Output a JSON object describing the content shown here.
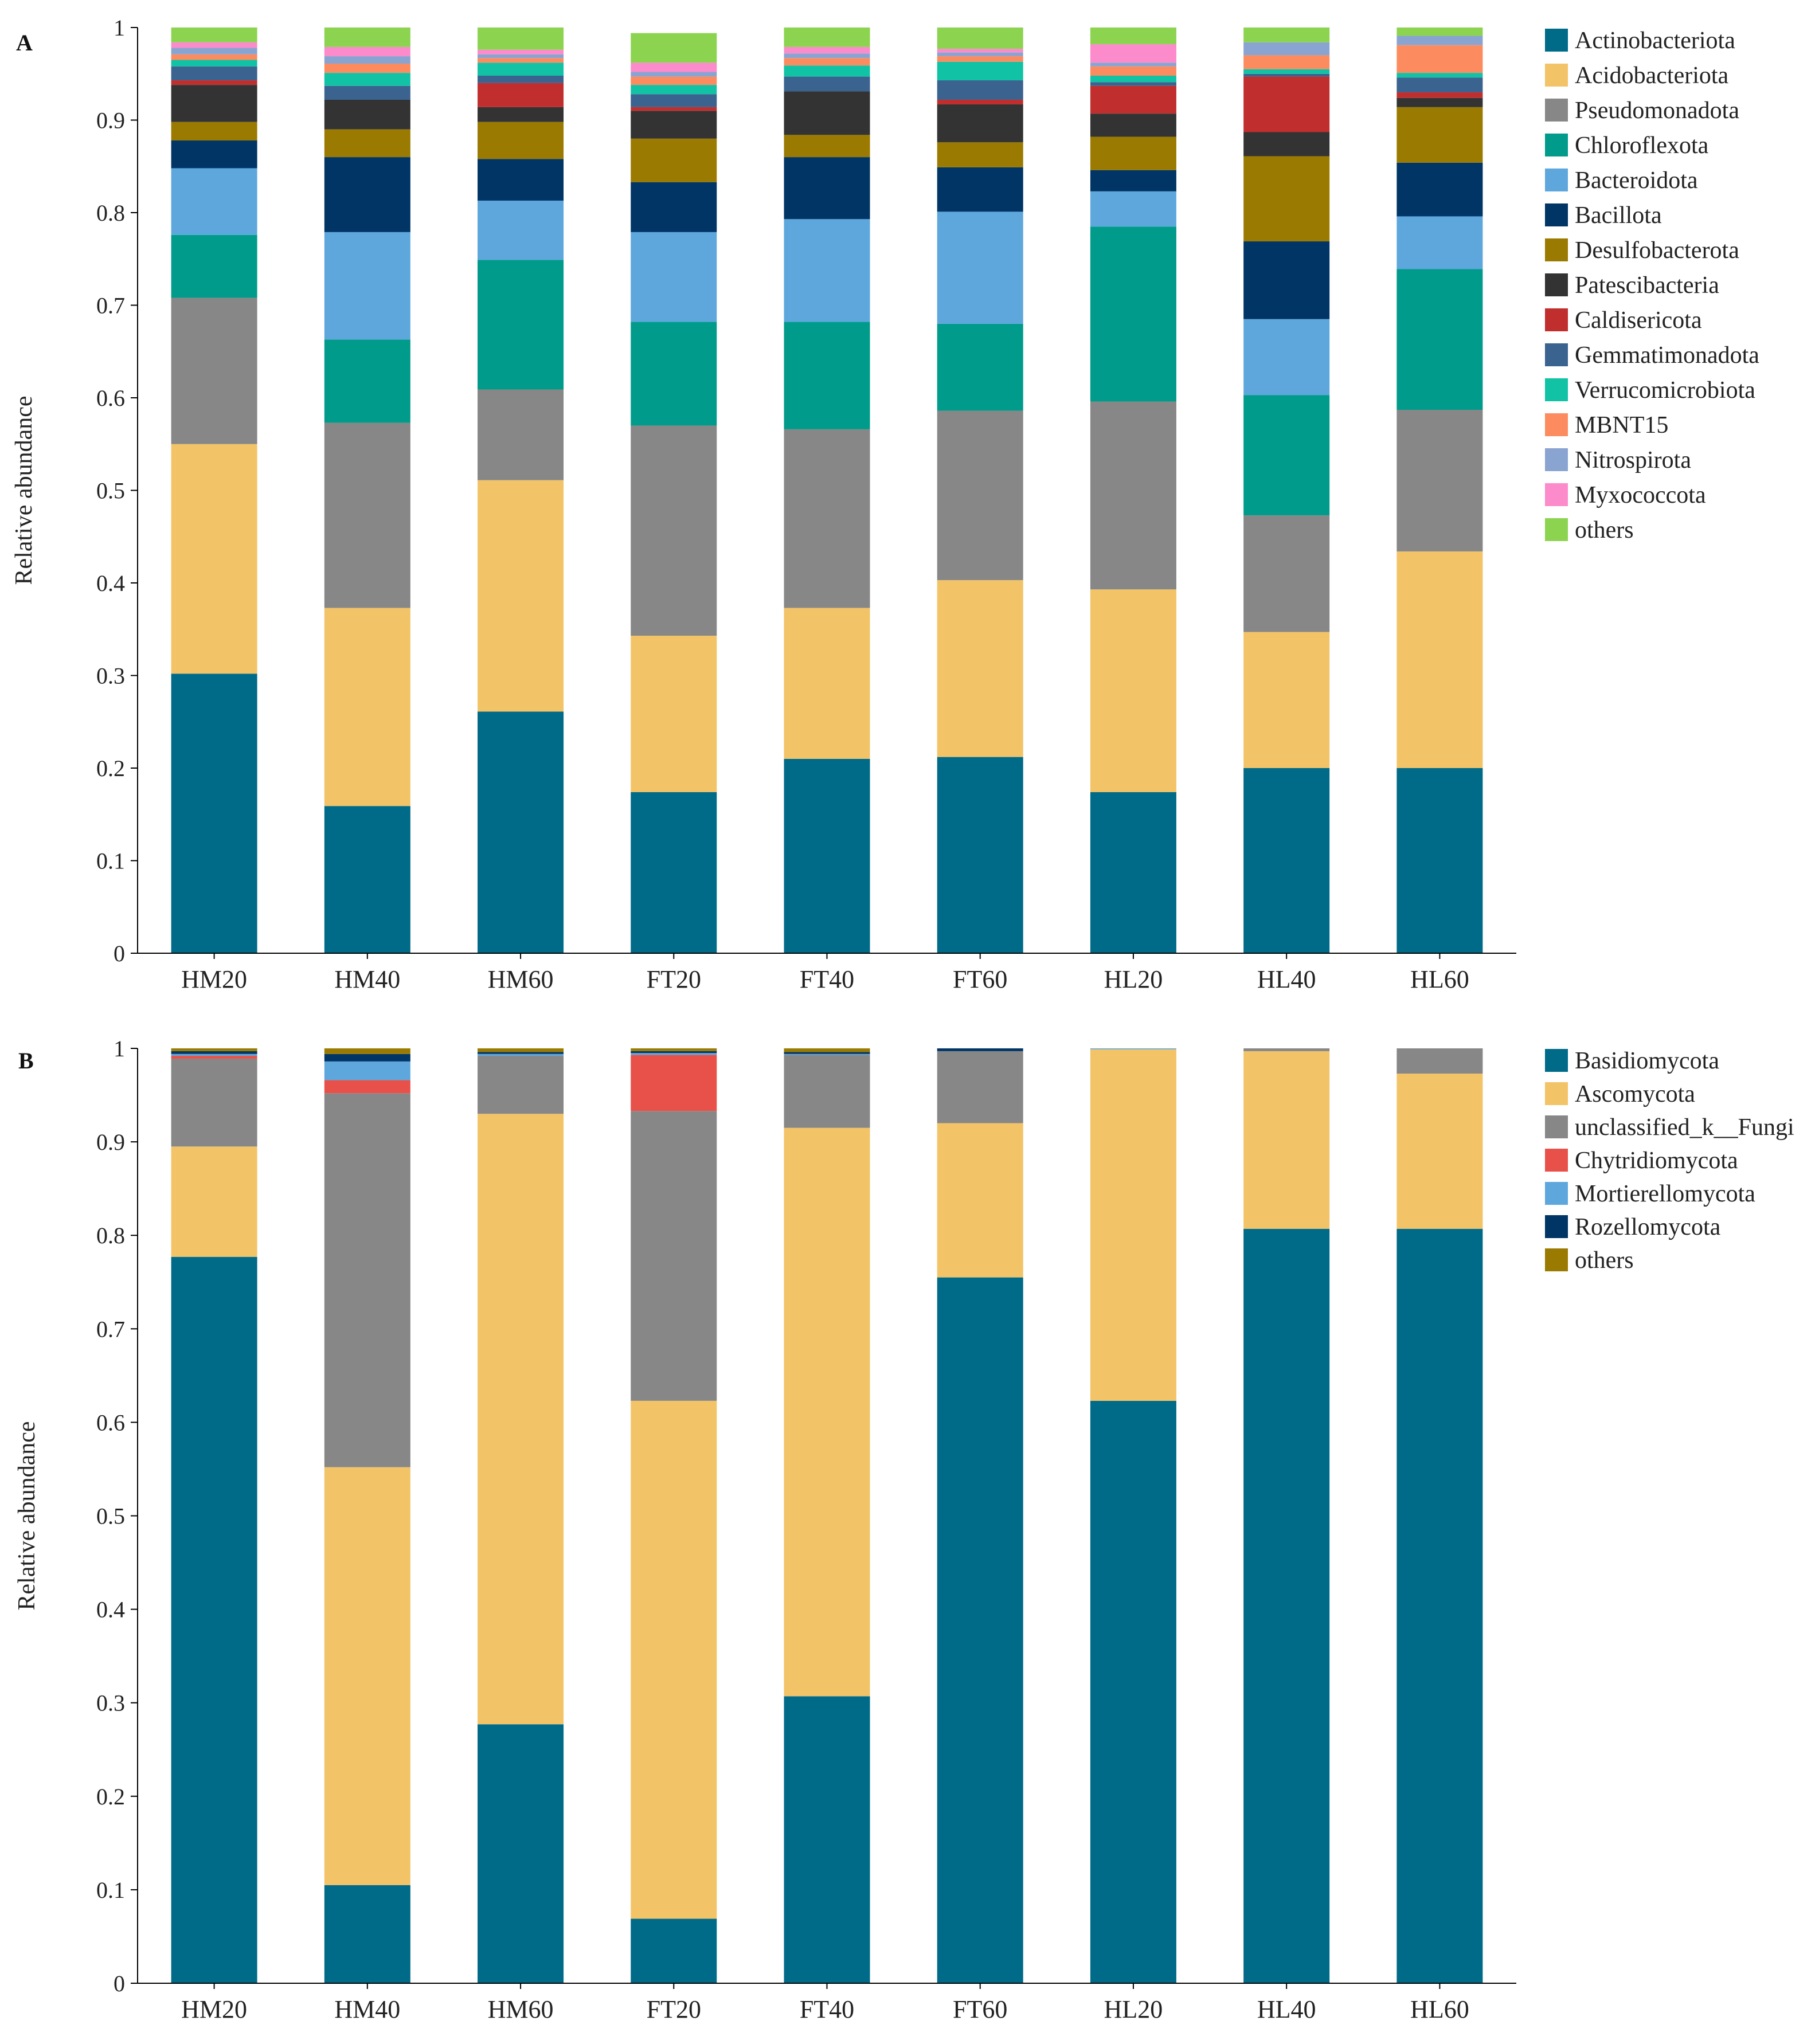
{
  "chart_data": [
    {
      "panel": "A",
      "type": "bar",
      "stacked": true,
      "ylabel": "Relative abundance",
      "ylim": [
        0,
        1
      ],
      "yticks": [
        "0",
        "0.1",
        "0.2",
        "0.3",
        "0.4",
        "0.5",
        "0.6",
        "0.7",
        "0.8",
        "0.9",
        "1"
      ],
      "categories": [
        "HM20",
        "HM40",
        "HM60",
        "FT20",
        "FT40",
        "FT60",
        "HL20",
        "HL40",
        "HL60"
      ],
      "series": [
        {
          "name": "Actinobacteriota",
          "color": "#006A89",
          "values": [
            0.302,
            0.159,
            0.261,
            0.174,
            0.21,
            0.212,
            0.174,
            0.2,
            0.2
          ]
        },
        {
          "name": "Acidobacteriota",
          "color": "#F3C367",
          "values": [
            0.248,
            0.214,
            0.25,
            0.169,
            0.163,
            0.191,
            0.219,
            0.147,
            0.234
          ]
        },
        {
          "name": "Pseudomonadota",
          "color": "#878787",
          "values": [
            0.158,
            0.2,
            0.098,
            0.227,
            0.193,
            0.183,
            0.203,
            0.126,
            0.153
          ]
        },
        {
          "name": "Chloroflexota",
          "color": "#009B8A",
          "values": [
            0.068,
            0.09,
            0.14,
            0.112,
            0.116,
            0.094,
            0.189,
            0.13,
            0.152
          ]
        },
        {
          "name": "Bacteroidota",
          "color": "#5EA7DD",
          "values": [
            0.072,
            0.116,
            0.064,
            0.097,
            0.111,
            0.121,
            0.038,
            0.082,
            0.057
          ]
        },
        {
          "name": "Bacillota",
          "color": "#003566",
          "values": [
            0.03,
            0.081,
            0.045,
            0.054,
            0.067,
            0.048,
            0.023,
            0.084,
            0.058
          ]
        },
        {
          "name": "Desulfobacterota",
          "color": "#9A7A00",
          "values": [
            0.02,
            0.03,
            0.04,
            0.047,
            0.024,
            0.027,
            0.036,
            0.092,
            0.06
          ]
        },
        {
          "name": "Patescibacteria",
          "color": "#333333",
          "values": [
            0.04,
            0.032,
            0.016,
            0.03,
            0.047,
            0.041,
            0.025,
            0.026,
            0.01
          ]
        },
        {
          "name": "Caldisericota",
          "color": "#C12E2E",
          "values": [
            0.005,
            0.0,
            0.026,
            0.004,
            0.0,
            0.005,
            0.03,
            0.06,
            0.006
          ]
        },
        {
          "name": "Gemmatimonadota",
          "color": "#3A6390",
          "values": [
            0.015,
            0.015,
            0.008,
            0.014,
            0.016,
            0.021,
            0.004,
            0.003,
            0.016
          ]
        },
        {
          "name": "Verrucomicrobiota",
          "color": "#11C2A5",
          "values": [
            0.007,
            0.014,
            0.014,
            0.01,
            0.012,
            0.02,
            0.007,
            0.005,
            0.005
          ]
        },
        {
          "name": "MBNT15",
          "color": "#FC8C5F",
          "values": [
            0.006,
            0.01,
            0.005,
            0.009,
            0.008,
            0.006,
            0.01,
            0.015,
            0.03
          ]
        },
        {
          "name": "Nitrospirota",
          "color": "#8AA4D2",
          "values": [
            0.007,
            0.008,
            0.004,
            0.005,
            0.005,
            0.004,
            0.004,
            0.014,
            0.01
          ]
        },
        {
          "name": "Myxococcota",
          "color": "#FC8BCB",
          "values": [
            0.006,
            0.01,
            0.005,
            0.01,
            0.007,
            0.004,
            0.02,
            0.0,
            0.0
          ]
        },
        {
          "name": "others",
          "color": "#8CD450",
          "values": [
            0.016,
            0.021,
            0.024,
            0.032,
            0.021,
            0.023,
            0.018,
            0.016,
            0.009
          ]
        }
      ]
    },
    {
      "panel": "B",
      "type": "bar",
      "stacked": true,
      "ylabel": "Relative abundance",
      "ylim": [
        0,
        1
      ],
      "yticks": [
        "0",
        "0.1",
        "0.2",
        "0.3",
        "0.4",
        "0.5",
        "0.6",
        "0.7",
        "0.8",
        "0.9",
        "1"
      ],
      "categories": [
        "HM20",
        "HM40",
        "HM60",
        "FT20",
        "FT40",
        "FT60",
        "HL20",
        "HL40",
        "HL60"
      ],
      "series": [
        {
          "name": "Basidiomycota",
          "color": "#006A89",
          "values": [
            0.777,
            0.105,
            0.277,
            0.069,
            0.307,
            0.755,
            0.623,
            0.807,
            0.807
          ]
        },
        {
          "name": "Ascomycota",
          "color": "#F3C367",
          "values": [
            0.118,
            0.447,
            0.653,
            0.554,
            0.608,
            0.165,
            0.376,
            0.19,
            0.166
          ]
        },
        {
          "name": "unclassified_k__Fungi",
          "color": "#878787",
          "values": [
            0.094,
            0.4,
            0.062,
            0.31,
            0.078,
            0.077,
            0.0,
            0.003,
            0.027
          ]
        },
        {
          "name": "Chytridiomycota",
          "color": "#E8514A",
          "values": [
            0.003,
            0.014,
            0.0,
            0.06,
            0.0,
            0.0,
            0.0,
            0.0,
            0.0
          ]
        },
        {
          "name": "Mortierellomycota",
          "color": "#5EA7DD",
          "values": [
            0.002,
            0.02,
            0.002,
            0.002,
            0.001,
            0.0,
            0.001,
            0.0,
            0.0
          ]
        },
        {
          "name": "Rozellomycota",
          "color": "#003566",
          "values": [
            0.003,
            0.008,
            0.002,
            0.002,
            0.002,
            0.003,
            0.0,
            0.0,
            0.0
          ]
        },
        {
          "name": "others",
          "color": "#9A7A00",
          "values": [
            0.003,
            0.006,
            0.004,
            0.003,
            0.004,
            0.0,
            0.0,
            0.0,
            0.0
          ]
        }
      ]
    }
  ]
}
